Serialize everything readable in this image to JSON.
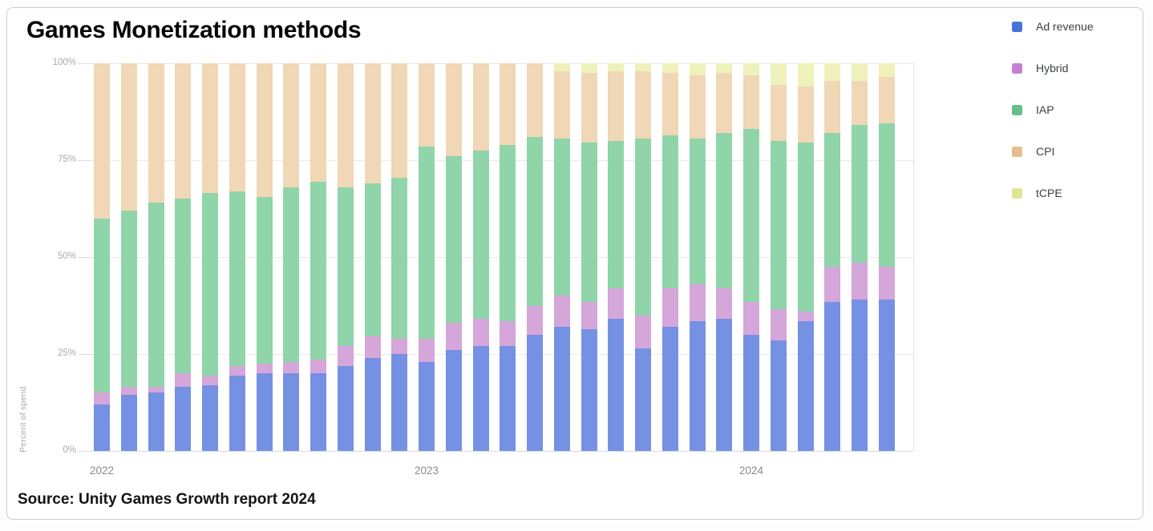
{
  "header": {
    "title": "Games Monetization methods",
    "source": "Source: Unity Games Growth report 2024"
  },
  "legend": {
    "position": "right",
    "items": [
      {
        "label": "Ad revenue",
        "swatch_color": "#4a73d9"
      },
      {
        "label": "Hybrid",
        "swatch_color": "#c77fd0"
      },
      {
        "label": "IAP",
        "swatch_color": "#67bf8b"
      },
      {
        "label": "CPI",
        "swatch_color": "#e8bd8d"
      },
      {
        "label": "tCPE",
        "swatch_color": "#dfe591"
      }
    ]
  },
  "chart_data": {
    "type": "bar",
    "stacked": true,
    "unit": "percent of spend",
    "title": "Games Monetization methods",
    "xlabel": "",
    "ylabel": "Percent of spend",
    "ylim": [
      0,
      100
    ],
    "grid": true,
    "legend_position": "right",
    "categories": [
      "2022-01",
      "2022-02",
      "2022-03",
      "2022-04",
      "2022-05",
      "2022-06",
      "2022-07",
      "2022-08",
      "2022-09",
      "2022-10",
      "2022-11",
      "2022-12",
      "2023-01",
      "2023-02",
      "2023-03",
      "2023-04",
      "2023-05",
      "2023-06",
      "2023-07",
      "2023-08",
      "2023-09",
      "2023-10",
      "2023-11",
      "2023-12",
      "2024-01",
      "2024-02",
      "2024-03",
      "2024-04",
      "2024-05",
      "2024-06"
    ],
    "x_axis_labels": [
      {
        "label": "2022",
        "category_index": 0
      },
      {
        "label": "2023",
        "category_index": 12
      },
      {
        "label": "2024",
        "category_index": 24
      }
    ],
    "y_axis_labels": [
      {
        "label": "100%",
        "value": 100
      },
      {
        "label": "75%",
        "value": 75
      },
      {
        "label": "50%",
        "value": 50
      },
      {
        "label": "25%",
        "value": 25
      },
      {
        "label": "0%",
        "value": 0
      }
    ],
    "series": [
      {
        "name": "Ad revenue",
        "color": "#7591e3",
        "legend_color": "#4a73d9",
        "values": [
          12,
          14.5,
          15,
          16.5,
          17,
          19.5,
          20,
          20,
          20,
          22,
          24,
          25,
          23,
          26,
          27,
          27,
          30,
          32,
          31.5,
          34,
          26.5,
          32,
          33.5,
          34,
          30,
          28.5,
          33.5,
          38.5,
          39,
          39
        ]
      },
      {
        "name": "Hybrid",
        "color": "#d5a6d9",
        "legend_color": "#c77fd0",
        "values": [
          3,
          2,
          1.5,
          3.5,
          2.5,
          2.5,
          2.5,
          3,
          3.5,
          5,
          5.5,
          4,
          6,
          7,
          7,
          6.5,
          7.5,
          8,
          7,
          8,
          8.5,
          10,
          9.5,
          8,
          8.5,
          8,
          2.5,
          9,
          9.5,
          8.5
        ]
      },
      {
        "name": "IAP",
        "color": "#8fd5a9",
        "legend_color": "#67bf8b",
        "values": [
          45,
          45.5,
          47.5,
          45,
          47,
          45,
          43,
          45,
          46,
          41,
          39.5,
          41.5,
          49.5,
          43,
          43.5,
          45.5,
          43.5,
          40.5,
          41,
          38,
          45.5,
          39.5,
          37.5,
          40,
          44.5,
          43.5,
          43.5,
          34.5,
          35.5,
          37
        ]
      },
      {
        "name": "CPI",
        "color": "#f0d7b6",
        "legend_color": "#e8bd8d",
        "values": [
          40,
          38,
          36,
          35,
          33.5,
          33,
          34.5,
          32,
          30.5,
          32,
          31,
          29.5,
          21.5,
          24,
          22.5,
          21,
          19,
          17.5,
          18,
          18,
          17.5,
          16,
          16.5,
          15.5,
          14,
          14.5,
          14.5,
          13.5,
          11.5,
          12
        ]
      },
      {
        "name": "tCPE",
        "color": "#eef2ba",
        "legend_color": "#dfe591",
        "values": [
          0,
          0,
          0,
          0,
          0,
          0,
          0,
          0,
          0,
          0,
          0,
          0,
          0,
          0,
          0,
          0,
          0,
          2,
          2.5,
          2,
          2,
          2.5,
          3,
          2.5,
          3,
          5.5,
          6,
          4.5,
          4.5,
          3.5
        ]
      }
    ]
  }
}
